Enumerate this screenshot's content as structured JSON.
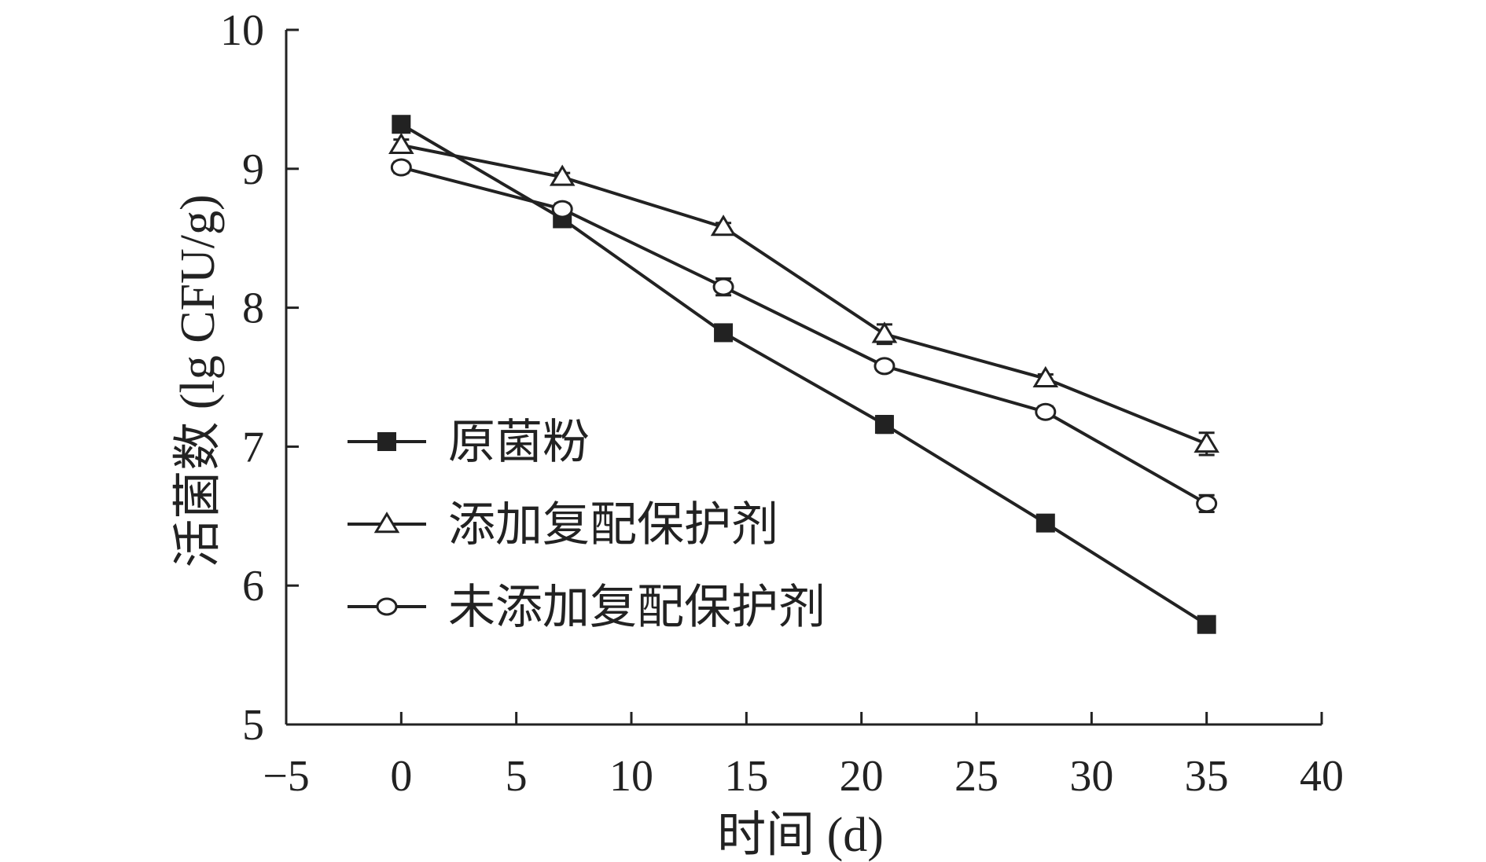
{
  "chart_data": {
    "type": "line",
    "xlabel": "时间 (d)",
    "ylabel": "活菌数 (lg CFU/g)",
    "xlim": [
      -5,
      40
    ],
    "ylim": [
      5,
      10
    ],
    "xticks": [
      -5,
      0,
      5,
      10,
      15,
      20,
      25,
      30,
      35,
      40
    ],
    "yticks": [
      5,
      6,
      7,
      8,
      9,
      10
    ],
    "xtick_labels": [
      "−5",
      "0",
      "5",
      "10",
      "15",
      "20",
      "25",
      "30",
      "35",
      "40"
    ],
    "ytick_labels": [
      "5",
      "6",
      "7",
      "8",
      "9",
      "10"
    ],
    "x": [
      0,
      7,
      14,
      21,
      28,
      35
    ],
    "grid": false,
    "legend_position": "lower-left",
    "series": [
      {
        "name": "原菌粉",
        "marker": "filled-square",
        "values": [
          9.32,
          8.64,
          7.82,
          7.16,
          6.45,
          5.72
        ],
        "errors": [
          0.02,
          0.03,
          0.03,
          0.06,
          0.02,
          0.03
        ]
      },
      {
        "name": "添加复配保护剂",
        "marker": "open-triangle",
        "values": [
          9.17,
          8.94,
          8.58,
          7.81,
          7.49,
          7.02
        ],
        "errors": [
          0.04,
          0.03,
          0.03,
          0.07,
          0.03,
          0.08
        ]
      },
      {
        "name": "未添加复配保护剂",
        "marker": "open-circle",
        "values": [
          9.01,
          8.71,
          8.15,
          7.58,
          7.25,
          6.59
        ],
        "errors": [
          0.04,
          0.04,
          0.06,
          0.03,
          0.04,
          0.06
        ]
      }
    ]
  }
}
